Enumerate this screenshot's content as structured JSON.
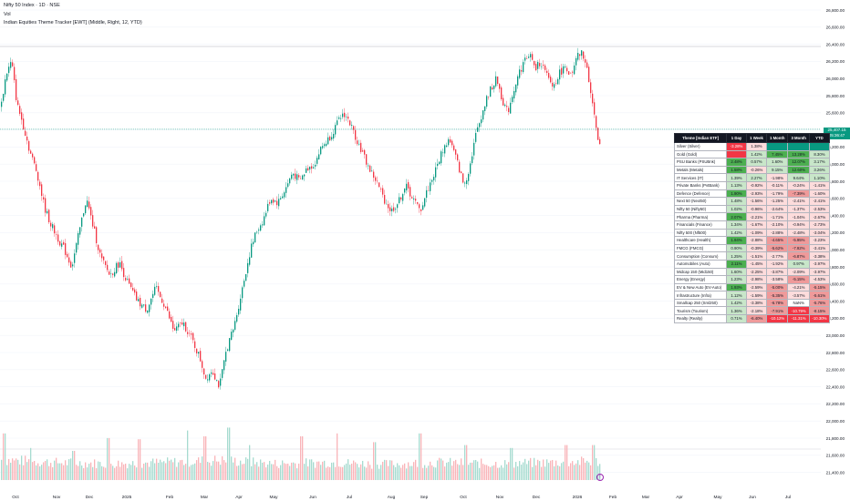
{
  "header": {
    "symbol": "Nifty 50 Index · 1D · NSE",
    "volume_label": "Vol",
    "indicator": "Indian Equities Theme Tracker [EWT] (Middle, Right, 12, YTD)"
  },
  "price_label": {
    "value": "25,407.15",
    "countdown": "05:36:47"
  },
  "colors": {
    "up": "#089981",
    "down": "#f23645",
    "vol_up": "#a6dbd0",
    "vol_down": "#f9b4b8",
    "grid": "#f0f3fa",
    "axis_text": "#131722"
  },
  "icons": [
    "alert-icon"
  ],
  "chart_data": {
    "type": "candlestick",
    "title": "Nifty 50 Index · 1D · NSE",
    "y_axis": {
      "ylim": [
        21400,
        26900
      ],
      "ticks": [
        "26,800.00",
        "26,600.00",
        "26,400.00",
        "26,200.00",
        "26,000.00",
        "25,800.00",
        "25,600.00",
        "25,400.00",
        "25,200.00",
        "25,000.00",
        "24,800.00",
        "24,600.00",
        "24,400.00",
        "24,200.00",
        "24,000.00",
        "23,800.00",
        "23,600.00",
        "23,400.00",
        "23,200.00",
        "23,000.00",
        "22,800.00",
        "22,600.00",
        "22,400.00",
        "22,200.00",
        "22,000.00",
        "21,800.00",
        "21,600.00",
        "21,400.00"
      ],
      "tick_values": [
        26800,
        26600,
        26400,
        26200,
        26000,
        25800,
        25600,
        25400,
        25200,
        25000,
        24800,
        24600,
        24400,
        24200,
        24000,
        23800,
        23600,
        23400,
        23200,
        23000,
        22800,
        22600,
        22400,
        22200,
        22000,
        21800,
        21600,
        21400
      ]
    },
    "x_axis": {
      "ticks": [
        "Oct",
        "Nov",
        "Dec",
        "2025",
        "Feb",
        "Mar",
        "Apr",
        "May",
        "Jun",
        "Jul",
        "Aug",
        "Sep",
        "Oct",
        "Nov",
        "Dec",
        "2026",
        "Feb",
        "Mar",
        "Apr",
        "May",
        "Jun",
        "Jul"
      ]
    },
    "last_close": 25407.15,
    "grid": true,
    "close_path": [
      [
        0,
        25650
      ],
      [
        6,
        26050
      ],
      [
        12,
        26200
      ],
      [
        18,
        25700
      ],
      [
        25,
        25450
      ],
      [
        32,
        25150
      ],
      [
        40,
        24900
      ],
      [
        48,
        24500
      ],
      [
        55,
        24300
      ],
      [
        62,
        24150
      ],
      [
        70,
        24000
      ],
      [
        78,
        23800
      ],
      [
        86,
        24200
      ],
      [
        94,
        24600
      ],
      [
        102,
        24250
      ],
      [
        110,
        23900
      ],
      [
        120,
        23700
      ],
      [
        130,
        23850
      ],
      [
        140,
        23600
      ],
      [
        150,
        23400
      ],
      [
        160,
        23300
      ],
      [
        170,
        23550
      ],
      [
        180,
        23350
      ],
      [
        190,
        23050
      ],
      [
        200,
        23150
      ],
      [
        210,
        22950
      ],
      [
        218,
        22750
      ],
      [
        225,
        22500
      ],
      [
        232,
        22600
      ],
      [
        240,
        22400
      ],
      [
        248,
        22850
      ],
      [
        256,
        23100
      ],
      [
        262,
        23400
      ],
      [
        268,
        23700
      ],
      [
        274,
        24000
      ],
      [
        280,
        24200
      ],
      [
        288,
        24350
      ],
      [
        296,
        24600
      ],
      [
        304,
        24550
      ],
      [
        312,
        24700
      ],
      [
        320,
        24900
      ],
      [
        328,
        24800
      ],
      [
        336,
        24950
      ],
      [
        344,
        25000
      ],
      [
        352,
        25200
      ],
      [
        360,
        25300
      ],
      [
        368,
        25450
      ],
      [
        376,
        25600
      ],
      [
        382,
        25500
      ],
      [
        388,
        25350
      ],
      [
        396,
        25150
      ],
      [
        404,
        24950
      ],
      [
        412,
        24800
      ],
      [
        420,
        24600
      ],
      [
        428,
        24450
      ],
      [
        436,
        24550
      ],
      [
        444,
        24750
      ],
      [
        452,
        24600
      ],
      [
        460,
        24450
      ],
      [
        468,
        24700
      ],
      [
        476,
        24900
      ],
      [
        484,
        25150
      ],
      [
        492,
        25300
      ],
      [
        500,
        25050
      ],
      [
        508,
        24750
      ],
      [
        514,
        24950
      ],
      [
        520,
        25300
      ],
      [
        528,
        25600
      ],
      [
        536,
        25850
      ],
      [
        544,
        26000
      ],
      [
        550,
        25750
      ],
      [
        556,
        25600
      ],
      [
        562,
        25850
      ],
      [
        568,
        26050
      ],
      [
        574,
        26200
      ],
      [
        580,
        26300
      ],
      [
        586,
        26100
      ],
      [
        592,
        26200
      ],
      [
        600,
        26000
      ],
      [
        606,
        25900
      ],
      [
        612,
        26050
      ],
      [
        620,
        26150
      ],
      [
        626,
        26000
      ],
      [
        632,
        26250
      ],
      [
        638,
        26300
      ],
      [
        644,
        26050
      ],
      [
        648,
        25800
      ],
      [
        652,
        25500
      ],
      [
        656,
        25150
      ],
      [
        658,
        25407
      ]
    ],
    "volume_path": [
      [
        0,
        0.35
      ],
      [
        60,
        0.3
      ],
      [
        120,
        0.28
      ],
      [
        180,
        0.3
      ],
      [
        240,
        0.34
      ],
      [
        300,
        0.28
      ],
      [
        360,
        0.3
      ],
      [
        420,
        0.27
      ],
      [
        480,
        0.3
      ],
      [
        540,
        0.28
      ],
      [
        600,
        0.3
      ],
      [
        658,
        0.32
      ]
    ],
    "volume_spikes": [
      [
        4,
        0.8
      ],
      [
        33,
        0.55
      ],
      [
        80,
        0.5
      ],
      [
        118,
        0.72
      ],
      [
        152,
        0.7
      ],
      [
        205,
        0.85
      ],
      [
        224,
        0.75
      ],
      [
        250,
        0.9
      ],
      [
        273,
        0.6
      ],
      [
        330,
        0.75
      ],
      [
        369,
        0.8
      ],
      [
        410,
        0.65
      ],
      [
        460,
        0.8
      ],
      [
        510,
        0.6
      ],
      [
        560,
        0.55
      ],
      [
        620,
        0.6
      ],
      [
        650,
        0.6
      ]
    ]
  },
  "tracker": {
    "headers": [
      "Theme [Indian ETF]",
      "1 Day",
      "1 Week",
      "1 Month",
      "3 Month",
      "YTD"
    ],
    "rows": [
      {
        "theme": "Silver (Silver)",
        "values": [
          "-3.28%",
          "1.38%",
          "",
          "",
          ""
        ],
        "tones": [
          "r3",
          "r1",
          "g3",
          "g3",
          "g3"
        ]
      },
      {
        "theme": "Gold (Gold)",
        "values": [
          "",
          "1.42%",
          "7.45%",
          "13.28%",
          "8.30%"
        ],
        "tones": [
          "r3",
          "g1",
          "g2",
          "g2",
          "g1"
        ]
      },
      {
        "theme": "PSU Banks (PSUBnk)",
        "values": [
          "2.48%",
          "0.57%",
          "1.60%",
          "12.07%",
          "3.17%"
        ],
        "tones": [
          "g2",
          "g1",
          "g1",
          "g2",
          "g1"
        ]
      },
      {
        "theme": "Metals (Metals)",
        "values": [
          "1.58%",
          "-0.26%",
          "9.15%",
          "12.60%",
          "3.26%"
        ],
        "tones": [
          "g2",
          "r1",
          "g1",
          "g2",
          "g1"
        ]
      },
      {
        "theme": "IT Services (IT)",
        "values": [
          "1.39%",
          "2.27%",
          "-1.98%",
          "9.64%",
          "1.10%"
        ],
        "tones": [
          "g1",
          "g1",
          "r1",
          "g1",
          "g1"
        ]
      },
      {
        "theme": "Private Banks (PvtBank)",
        "values": [
          "1.13%",
          "-0.92%",
          "-0.11%",
          "-0.24%",
          "-1.41%"
        ],
        "tones": [
          "g1",
          "r1",
          "r1",
          "r1",
          "r1"
        ]
      },
      {
        "theme": "Defence (Defence)",
        "values": [
          "1.90%",
          "-2.93%",
          "-1.79%",
          "-7.39%",
          "-1.60%"
        ],
        "tones": [
          "g2",
          "r1",
          "r1",
          "r2",
          "r1"
        ]
      },
      {
        "theme": "Next 50 (Next50)",
        "values": [
          "1.48%",
          "-1.56%",
          "-1.25%",
          "-2.41%",
          "-2.41%"
        ],
        "tones": [
          "g1",
          "r1",
          "r1",
          "r1",
          "r1"
        ]
      },
      {
        "theme": "Nifty 50 (Nifty50)",
        "values": [
          "1.02%",
          "-0.96%",
          "-2.64%",
          "-1.37%",
          "-2.53%"
        ],
        "tones": [
          "g1",
          "r1",
          "r1",
          "r1",
          "r1"
        ]
      },
      {
        "theme": "Pharma (Pharma)",
        "values": [
          "2.07%",
          "-2.21%",
          "-1.71%",
          "-1.04%",
          "-2.67%"
        ],
        "tones": [
          "g2",
          "r1",
          "r1",
          "r1",
          "r1"
        ]
      },
      {
        "theme": "Financials (Finance)",
        "values": [
          "1.34%",
          "-1.67%",
          "-2.10%",
          "-0.94%",
          "-2.73%"
        ],
        "tones": [
          "g1",
          "r1",
          "r1",
          "r1",
          "r1"
        ]
      },
      {
        "theme": "Nifty 500 (Nf500)",
        "values": [
          "1.42%",
          "-1.09%",
          "-2.88%",
          "-2.48%",
          "-3.04%"
        ],
        "tones": [
          "g1",
          "r1",
          "r1",
          "r1",
          "r1"
        ]
      },
      {
        "theme": "Healthcare (Health)",
        "values": [
          "1.94%",
          "-2.88%",
          "-4.65%",
          "-5.95%",
          "-3.23%"
        ],
        "tones": [
          "g2",
          "r1",
          "r2",
          "r2",
          "r1"
        ]
      },
      {
        "theme": "FMCG (FMCG)",
        "values": [
          "0.90%",
          "-0.39%",
          "-5.62%",
          "-7.92%",
          "-3.41%"
        ],
        "tones": [
          "g1",
          "r1",
          "r2",
          "r2",
          "r1"
        ]
      },
      {
        "theme": "Consumption (Consum)",
        "values": [
          "1.25%",
          "-1.51%",
          "-2.77%",
          "-6.87%",
          "-3.38%"
        ],
        "tones": [
          "g1",
          "r1",
          "r1",
          "r2",
          "r1"
        ]
      },
      {
        "theme": "Automobiles (Auto)",
        "values": [
          "2.11%",
          "-1.45%",
          "-1.92%",
          "0.97%",
          "-3.97%"
        ],
        "tones": [
          "g2",
          "r1",
          "r1",
          "g1",
          "r1"
        ]
      },
      {
        "theme": "Midcap 150 (Mid150)",
        "values": [
          "1.60%",
          "-2.25%",
          "-3.87%",
          "-2.09%",
          "-3.97%"
        ],
        "tones": [
          "g1",
          "r1",
          "r1",
          "r1",
          "r1"
        ]
      },
      {
        "theme": "Energy (Energy)",
        "values": [
          "1.23%",
          "-2.98%",
          "-3.58%",
          "-5.15%",
          "-4.53%"
        ],
        "tones": [
          "g1",
          "r1",
          "r1",
          "r2",
          "r1"
        ]
      },
      {
        "theme": "EV & New Auto (EV-Auto)",
        "values": [
          "1.93%",
          "-2.59%",
          "-5.00%",
          "-4.21%",
          "-5.15%"
        ],
        "tones": [
          "g2",
          "r1",
          "r2",
          "r1",
          "r2"
        ]
      },
      {
        "theme": "Infrastructure (Infra)",
        "values": [
          "1.12%",
          "-1.59%",
          "-5.35%",
          "-3.57%",
          "-5.61%"
        ],
        "tones": [
          "g1",
          "r1",
          "r2",
          "r1",
          "r2"
        ]
      },
      {
        "theme": "Smallcap 250 (Sml250)",
        "values": [
          "1.42%",
          "-3.38%",
          "-6.78%",
          "NaN%",
          "-5.76%"
        ],
        "tones": [
          "g1",
          "r1",
          "r2",
          "w",
          "r2"
        ]
      },
      {
        "theme": "Tourism (Tourism)",
        "values": [
          "1.36%",
          "-2.18%",
          "-7.91%",
          "-10.79%",
          "-8.15%"
        ],
        "tones": [
          "g1",
          "r1",
          "r2",
          "r3",
          "r2"
        ]
      },
      {
        "theme": "Realty (Realty)",
        "values": [
          "0.71%",
          "-6.40%",
          "-10.12%",
          "-11.31%",
          "-10.30%"
        ],
        "tones": [
          "g1",
          "r2",
          "r3",
          "r3",
          "r3"
        ]
      }
    ]
  }
}
